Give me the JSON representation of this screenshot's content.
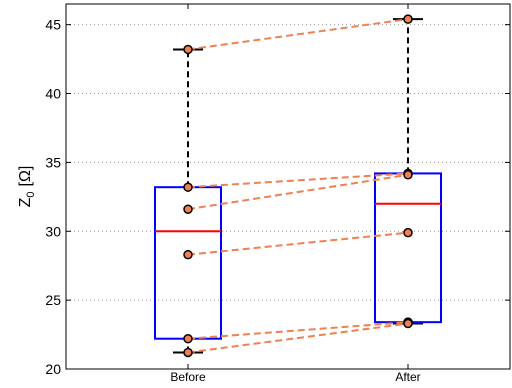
{
  "chart_data": {
    "type": "box",
    "title": "",
    "xlabel": "",
    "ylabel_main": "Z",
    "ylabel_sub": "0",
    "ylabel_unit": "[Ω]",
    "categories": [
      "Before",
      "After"
    ],
    "ylim": [
      20,
      46.5
    ],
    "yticks": [
      20,
      25,
      30,
      35,
      40,
      45
    ],
    "grid": "horizontal dotted",
    "boxes": [
      {
        "q1": 22.2,
        "median": 30.0,
        "q3": 33.2,
        "whisker_low": 21.2,
        "whisker_high": 43.2
      },
      {
        "q1": 23.4,
        "median": 32.0,
        "q3": 34.2,
        "whisker_low": 23.3,
        "whisker_high": 45.4
      }
    ],
    "paired_points": [
      {
        "before": 43.2,
        "after": 45.4
      },
      {
        "before": 33.2,
        "after": 34.2
      },
      {
        "before": 31.6,
        "after": 34.1
      },
      {
        "before": 28.3,
        "after": 29.9
      },
      {
        "before": 22.2,
        "after": 23.4
      },
      {
        "before": 21.2,
        "after": 23.3
      }
    ],
    "colors": {
      "box": "#0000ff",
      "median": "#ff0000",
      "whisker": "#000000",
      "pair_line": "#f08050",
      "point_fill": "#f08050",
      "point_edge": "#000000",
      "grid": "#999999"
    }
  }
}
